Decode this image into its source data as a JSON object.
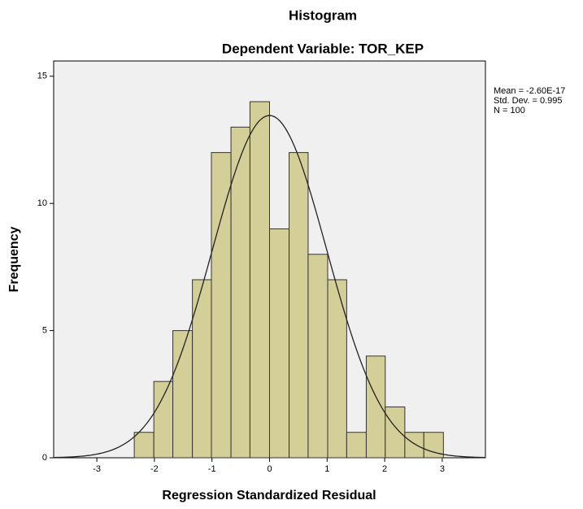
{
  "chart_data": {
    "type": "histogram",
    "title": "Histogram",
    "subtitle": "Dependent Variable: TOR_KEP",
    "x_label": "Regression Standardized Residual",
    "y_label": "Frequency",
    "bins": [
      -2.35,
      -2.01,
      -1.68,
      -1.34,
      -1.01,
      -0.67,
      -0.34,
      0,
      0.34,
      0.67,
      1.01,
      1.34,
      1.68,
      2.01,
      2.35,
      2.68,
      3.02
    ],
    "values": [
      1,
      3,
      5,
      7,
      12,
      13,
      14,
      9,
      12,
      8,
      7,
      1,
      4,
      2,
      1,
      1
    ],
    "color": "#d4cf98",
    "xlim": [
      -3.75,
      3.75
    ],
    "ylim": [
      0,
      15.6
    ],
    "xticks": [
      -3,
      -2,
      -1,
      0,
      1,
      2,
      3
    ],
    "yticks": [
      0,
      5,
      10,
      15
    ],
    "stats": {
      "mean": {
        "value": -2.6e-17,
        "label": "Mean = -2.60E-17"
      },
      "sd": {
        "value": 0.995,
        "label": "Std. Dev. = 0.995"
      },
      "n": {
        "value": 100,
        "label": "N = 100"
      }
    }
  }
}
